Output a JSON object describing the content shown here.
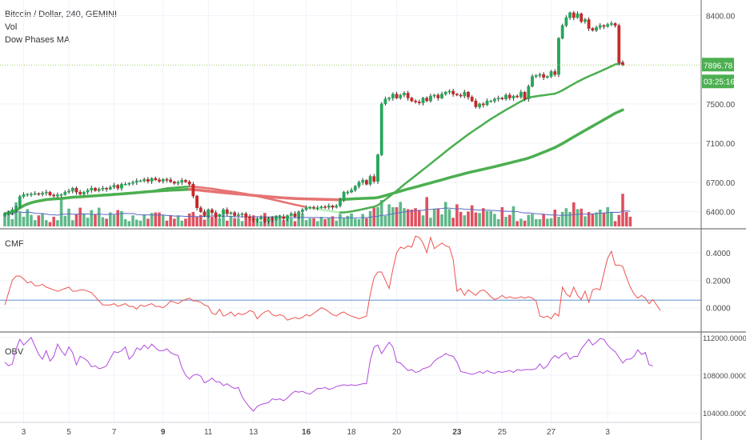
{
  "legend": {
    "title": "Bitcoin / Dollar, 240, GEMINI",
    "vol": "Vol",
    "ma": "Dow Phases MA",
    "cmf": "CMF",
    "obv": "OBV"
  },
  "price_tag": {
    "price": "7896.78",
    "countdown": "03:25:16"
  },
  "colors": {
    "up": "#26a65b",
    "down": "#c62828",
    "vol_up": "#5fb88a",
    "vol_down": "#e0505e",
    "ma_green": "#4caf50",
    "ma_red": "#e57373",
    "ma_gray": "#9e9e9e",
    "ma_light": "#b9f0bd",
    "vol_ma": "#5c6bc0",
    "cmf_line": "#ef5350",
    "cmf_zero": "#7fa7d9",
    "obv_line": "#b04adf",
    "grid": "#f0f3fa",
    "axis_text": "#4a4a4a",
    "tag_bg": "#4caf50"
  },
  "chart_data": [
    {
      "type": "candlestick",
      "title": "Bitcoin / Dollar, 240, GEMINI",
      "x_ticks": [
        "3",
        "5",
        "7",
        "9",
        "11",
        "13",
        "16",
        "18",
        "20",
        "23",
        "25",
        "27",
        "3"
      ],
      "y_ticks": [
        "8400.00",
        "7500.00",
        "7100.00",
        "6700.00",
        "6400.00"
      ],
      "ylim": [
        6250,
        8560
      ],
      "last_price": 7896.78,
      "close": [
        6380,
        6390,
        6420,
        6450,
        6555,
        6575,
        6578,
        6580,
        6585,
        6578,
        6590,
        6600,
        6570,
        6560,
        6572,
        6575,
        6600,
        6610,
        6640,
        6600,
        6580,
        6600,
        6620,
        6640,
        6615,
        6630,
        6640,
        6630,
        6650,
        6670,
        6640,
        6680,
        6680,
        6690,
        6700,
        6715,
        6715,
        6730,
        6710,
        6740,
        6725,
        6710,
        6730,
        6725,
        6705,
        6690,
        6700,
        6720,
        6705,
        6680,
        6560,
        6440,
        6400,
        6360,
        6420,
        6390,
        6350,
        6370,
        6420,
        6380,
        6390,
        6360,
        6370,
        6380,
        6350,
        6330,
        6315,
        6325,
        6340,
        6300,
        6330,
        6320,
        6345,
        6350,
        6330,
        6360,
        6380,
        6350,
        6400,
        6420,
        6440,
        6445,
        6440,
        6440,
        6450,
        6445,
        6460,
        6445,
        6460,
        6520,
        6600,
        6600,
        6620,
        6660,
        6700,
        6720,
        6680,
        6760,
        6710,
        6980,
        7500,
        7550,
        7560,
        7600,
        7560,
        7590,
        7610,
        7560,
        7530,
        7520,
        7510,
        7560,
        7530,
        7580,
        7590,
        7560,
        7600,
        7620,
        7630,
        7600,
        7590,
        7580,
        7620,
        7570,
        7530,
        7470,
        7500,
        7490,
        7530,
        7530,
        7550,
        7560,
        7550,
        7590,
        7560,
        7580,
        7570,
        7620,
        7550,
        7680,
        7780,
        7790,
        7800,
        7770,
        7780,
        7830,
        7800,
        8170,
        8300,
        8380,
        8430,
        8380,
        8420,
        8340,
        8360,
        8270,
        8250,
        8280,
        8300,
        8290,
        8310,
        8320,
        8300,
        7920,
        7897
      ]
    },
    {
      "type": "bar",
      "title": "Vol",
      "note": "volume histogram (relative scale, no axis printed)",
      "values": [
        0.24,
        0.33,
        0.15,
        0.5,
        0.3,
        0.2,
        0.36,
        0.24,
        0.13,
        0.23,
        0.27,
        0.13,
        0.09,
        0.2,
        0.13,
        0.6,
        0.22,
        0.37,
        0.13,
        0.25,
        0.39,
        0.27,
        0.18,
        0.34,
        0.26,
        0.39,
        0.19,
        0.16,
        0.29,
        0.24,
        0.34,
        0.32,
        0.15,
        0.11,
        0.23,
        0.14,
        0.12,
        0.25,
        0.16,
        0.28,
        0.29,
        0.29,
        0.23,
        0.12,
        0.23,
        0.16,
        0.23,
        0.12,
        0.16,
        0.27,
        0.3,
        0.2,
        0.24,
        0.14,
        0.34,
        0.2,
        0.21,
        0.17,
        0.21,
        0.12,
        0.22,
        0.17,
        0.17,
        0.11,
        0.26,
        0.15,
        0.23,
        0.17,
        0.11,
        0.28,
        0.2,
        0.21,
        0.23,
        0.23,
        0.13,
        0.16,
        0.17,
        0.11,
        0.2,
        0.27,
        0.13,
        0.17,
        0.17,
        0.11,
        0.2,
        0.15,
        0.18,
        0.21,
        0.12,
        0.26,
        0.17,
        0.22,
        0.27,
        0.16,
        0.15,
        0.26,
        0.17,
        0.32,
        0.39,
        0.4,
        0.55,
        0.22,
        0.46,
        0.4,
        0.4,
        0.51,
        0.38,
        0.36,
        0.35,
        0.38,
        0.34,
        0.23,
        0.61,
        0.18,
        0.36,
        0.37,
        0.25,
        0.51,
        0.36,
        0.18,
        0.46,
        0.3,
        0.23,
        0.31,
        0.44,
        0.29,
        0.28,
        0.38,
        0.32,
        0.32,
        0.26,
        0.15,
        0.4,
        0.2,
        0.24,
        0.42,
        0.11,
        0.16,
        0.12,
        0.24,
        0.26,
        0.15,
        0.15,
        0.25,
        0.16,
        0.17,
        0.35,
        0.2,
        0.3,
        0.38,
        0.3,
        0.5,
        0.36,
        0.37,
        0.21,
        0.3,
        0.26,
        0.29,
        0.35,
        0.28,
        0.4,
        0.29,
        0.11,
        0.24,
        0.68,
        0.3,
        0.2
      ]
    },
    {
      "type": "line",
      "title": "CMF",
      "y_ticks": [
        "0.4000",
        "0.2000",
        "0.0000"
      ],
      "ylim": [
        -0.17,
        0.55
      ],
      "baseline": 0.055,
      "values": [
        0.02,
        0.11,
        0.2,
        0.23,
        0.23,
        0.21,
        0.18,
        0.19,
        0.16,
        0.16,
        0.17,
        0.15,
        0.14,
        0.13,
        0.12,
        0.13,
        0.14,
        0.15,
        0.12,
        0.12,
        0.13,
        0.13,
        0.12,
        0.11,
        0.08,
        0.05,
        0.02,
        0.02,
        0.02,
        0.03,
        0.01,
        0.02,
        0.03,
        0.01,
        0.01,
        -0.01,
        0.02,
        0.01,
        0.02,
        0.03,
        0.01,
        0.01,
        0.0,
        0.02,
        0.05,
        0.04,
        0.03,
        0.05,
        0.06,
        0.07,
        0.05,
        0.05,
        0.04,
        0.02,
        0.01,
        -0.04,
        -0.05,
        -0.01,
        -0.06,
        -0.05,
        -0.03,
        -0.06,
        -0.04,
        -0.05,
        -0.04,
        -0.02,
        -0.03,
        -0.08,
        -0.05,
        -0.03,
        -0.02,
        -0.05,
        -0.06,
        -0.05,
        -0.06,
        -0.09,
        -0.08,
        -0.07,
        -0.08,
        -0.07,
        -0.05,
        -0.06,
        -0.04,
        -0.02,
        0.0,
        -0.01,
        -0.03,
        -0.05,
        -0.06,
        -0.04,
        -0.03,
        -0.05,
        -0.06,
        -0.07,
        -0.08,
        -0.07,
        -0.06,
        0.1,
        0.22,
        0.26,
        0.26,
        0.2,
        0.14,
        0.28,
        0.4,
        0.44,
        0.43,
        0.45,
        0.44,
        0.52,
        0.51,
        0.47,
        0.4,
        0.51,
        0.43,
        0.45,
        0.47,
        0.45,
        0.44,
        0.35,
        0.12,
        0.14,
        0.09,
        0.13,
        0.11,
        0.09,
        0.12,
        0.13,
        0.11,
        0.08,
        0.06,
        0.07,
        0.09,
        0.07,
        0.08,
        0.07,
        0.07,
        0.08,
        0.07,
        0.08,
        0.07,
        0.05,
        -0.06,
        -0.07,
        -0.06,
        -0.08,
        -0.04,
        -0.06,
        0.15,
        0.1,
        0.08,
        0.15,
        0.09,
        0.06,
        0.12,
        0.04,
        0.13,
        0.14,
        0.13,
        0.25,
        0.36,
        0.41,
        0.31,
        0.31,
        0.3,
        0.22,
        0.15,
        0.1,
        0.07,
        0.09,
        0.07,
        0.03,
        0.06,
        0.02,
        -0.02
      ]
    },
    {
      "type": "line",
      "title": "OBV",
      "y_ticks": [
        "112000.0000",
        "108000.0000",
        "104000.0000"
      ],
      "ylim": [
        103000,
        112500
      ],
      "values": [
        109400,
        109000,
        109200,
        110800,
        111800,
        111200,
        111600,
        112000,
        111100,
        110200,
        109700,
        110600,
        109500,
        110000,
        111300,
        110600,
        110100,
        111000,
        110400,
        109100,
        110000,
        109800,
        109500,
        108900,
        109000,
        108700,
        108800,
        109000,
        109800,
        110500,
        110400,
        110600,
        111000,
        109700,
        110100,
        110900,
        110700,
        111200,
        110800,
        111300,
        110900,
        110600,
        110600,
        110800,
        110400,
        110200,
        110100,
        108800,
        108000,
        107600,
        108000,
        108100,
        107900,
        107200,
        107400,
        107700,
        107300,
        107300,
        106900,
        107100,
        106800,
        106600,
        106700,
        105700,
        105100,
        104600,
        104200,
        104700,
        104900,
        105000,
        105100,
        105500,
        105400,
        105500,
        105300,
        105600,
        106000,
        106300,
        106200,
        106300,
        106100,
        106000,
        106300,
        106600,
        106600,
        106700,
        106500,
        106600,
        106800,
        106900,
        107000,
        106900,
        107000,
        106900,
        107000,
        107100,
        107100,
        109600,
        111000,
        111200,
        110300,
        110900,
        111500,
        111000,
        109400,
        109300,
        108900,
        108500,
        108600,
        108300,
        108400,
        108700,
        108800,
        109000,
        109500,
        109800,
        110000,
        110300,
        110100,
        110000,
        109400,
        108400,
        108300,
        108200,
        108100,
        108200,
        108400,
        108200,
        108500,
        108300,
        108200,
        108400,
        108300,
        108400,
        108500,
        108300,
        108600,
        108500,
        108600,
        108600,
        108600,
        108700,
        109200,
        108700,
        109000,
        109700,
        110100,
        109800,
        110200,
        110400,
        109700,
        110000,
        110000,
        110800,
        111300,
        111800,
        111200,
        111500,
        111900,
        111800,
        111200,
        110800,
        110500,
        109900,
        109300,
        109700,
        109700,
        110000,
        110700,
        110200,
        110400,
        109100,
        109000
      ]
    }
  ]
}
